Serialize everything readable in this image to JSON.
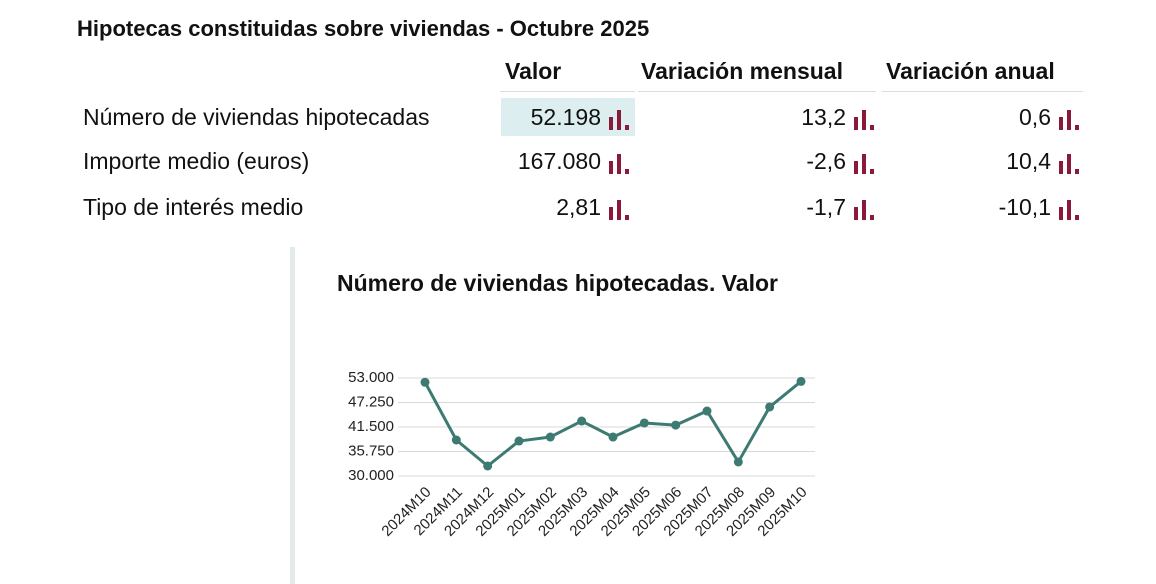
{
  "header": {
    "title": "Hipotecas constituidas sobre viviendas - Octubre 2025"
  },
  "table": {
    "columns": [
      "Valor",
      "Variación mensual",
      "Variación anual"
    ],
    "rows": [
      [
        "Número de viviendas hipotecadas",
        "52.198",
        "13,2",
        "0,6"
      ],
      [
        "Importe medio (euros)",
        "167.080",
        "-2,6",
        "10,4"
      ],
      [
        "Tipo de interés medio",
        "2,81",
        "-1,7",
        "-10,1"
      ]
    ]
  },
  "chart_data": {
    "type": "line",
    "title": "Número de viviendas hipotecadas. Valor",
    "categories": [
      "2024M10",
      "2024M11",
      "2024M12",
      "2025M01",
      "2025M02",
      "2025M03",
      "2025M04",
      "2025M05",
      "2025M06",
      "2025M07",
      "2025M08",
      "2025M09",
      "2025M10"
    ],
    "values": [
      52000,
      38450,
      32350,
      38200,
      39150,
      42900,
      39150,
      42450,
      41950,
      45250,
      33300,
      46200,
      52198
    ],
    "color": "#3d7b72",
    "ylim": [
      30000,
      53000
    ],
    "yticks": [
      {
        "value": 30000,
        "label": "30.000"
      },
      {
        "value": 35750,
        "label": "35.750"
      },
      {
        "value": 41500,
        "label": "41.500"
      },
      {
        "value": 47250,
        "label": "47.250"
      },
      {
        "value": 53000,
        "label": "53.000"
      }
    ],
    "grid": true
  }
}
